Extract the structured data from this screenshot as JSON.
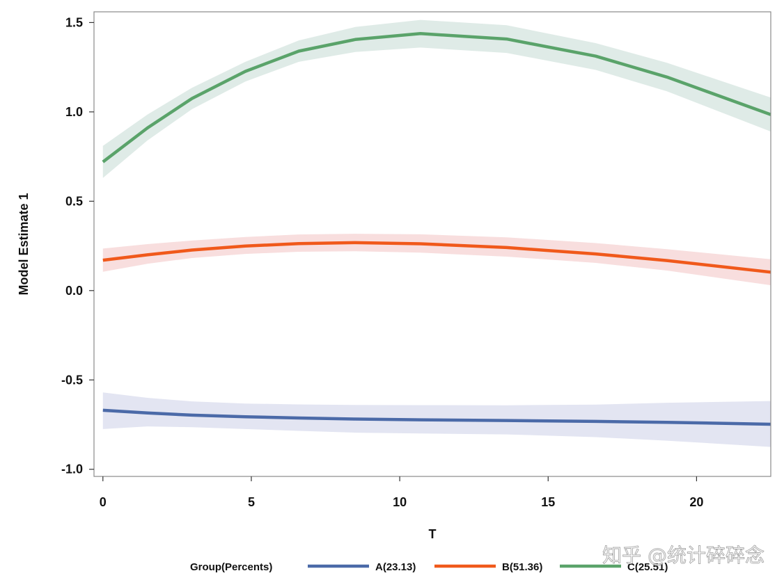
{
  "chart_data": {
    "type": "line",
    "title": "",
    "xlabel": "T",
    "ylabel": "Model Estimate 1",
    "xlim": [
      -0.3,
      22.5
    ],
    "ylim": [
      -1.04,
      1.56
    ],
    "x_ticks": [
      0,
      5,
      10,
      15,
      20
    ],
    "x_tick_labels": [
      "0",
      "5",
      "10",
      "15",
      "20"
    ],
    "y_ticks": [
      -1.0,
      -0.5,
      0.0,
      0.5,
      1.0,
      1.5
    ],
    "y_tick_labels": [
      "-1.0",
      "-0.5",
      "0.0",
      "0.5",
      "1.0",
      "1.5"
    ],
    "grid": false,
    "legend": {
      "title": "Group(Percents)",
      "placement": "bottom"
    },
    "series": [
      {
        "name": "A(23.13)",
        "line_color": "#4b6aa8",
        "band_color": "#e3e5f2",
        "x": [
          0,
          1.5,
          3,
          4.8,
          6.6,
          8.5,
          10.7,
          13.6,
          16.6,
          19,
          22.5
        ],
        "values": [
          -0.67,
          -0.685,
          -0.697,
          -0.706,
          -0.713,
          -0.719,
          -0.723,
          -0.727,
          -0.732,
          -0.737,
          -0.748
        ],
        "upper": [
          -0.57,
          -0.6,
          -0.62,
          -0.632,
          -0.637,
          -0.64,
          -0.641,
          -0.642,
          -0.638,
          -0.628,
          -0.618
        ],
        "lower": [
          -0.775,
          -0.76,
          -0.765,
          -0.775,
          -0.785,
          -0.795,
          -0.8,
          -0.805,
          -0.82,
          -0.84,
          -0.875
        ]
      },
      {
        "name": "B(51.36)",
        "line_color": "#f0591b",
        "band_color": "#f8dede",
        "x": [
          0,
          1.5,
          3,
          4.8,
          6.6,
          8.5,
          10.7,
          13.6,
          16.6,
          19,
          22.5
        ],
        "values": [
          0.17,
          0.2,
          0.227,
          0.249,
          0.263,
          0.268,
          0.262,
          0.241,
          0.205,
          0.168,
          0.103
        ],
        "upper": [
          0.235,
          0.26,
          0.28,
          0.3,
          0.314,
          0.318,
          0.315,
          0.298,
          0.266,
          0.232,
          0.175
        ],
        "lower": [
          0.105,
          0.15,
          0.182,
          0.205,
          0.217,
          0.22,
          0.212,
          0.19,
          0.155,
          0.112,
          0.03
        ]
      },
      {
        "name": "C(25.51)",
        "line_color": "#5aa36a",
        "band_color": "#dfebe7",
        "x": [
          0,
          1.5,
          3,
          4.8,
          6.6,
          8.5,
          10.7,
          13.6,
          16.6,
          19,
          22.5
        ],
        "values": [
          0.72,
          0.91,
          1.075,
          1.227,
          1.34,
          1.405,
          1.438,
          1.408,
          1.312,
          1.195,
          0.985
        ],
        "upper": [
          0.81,
          0.985,
          1.135,
          1.28,
          1.4,
          1.475,
          1.515,
          1.485,
          1.385,
          1.275,
          1.08
        ],
        "lower": [
          0.63,
          0.84,
          1.015,
          1.17,
          1.28,
          1.335,
          1.36,
          1.33,
          1.235,
          1.115,
          0.89
        ]
      }
    ]
  },
  "watermark": "知乎 @统计碎碎念"
}
